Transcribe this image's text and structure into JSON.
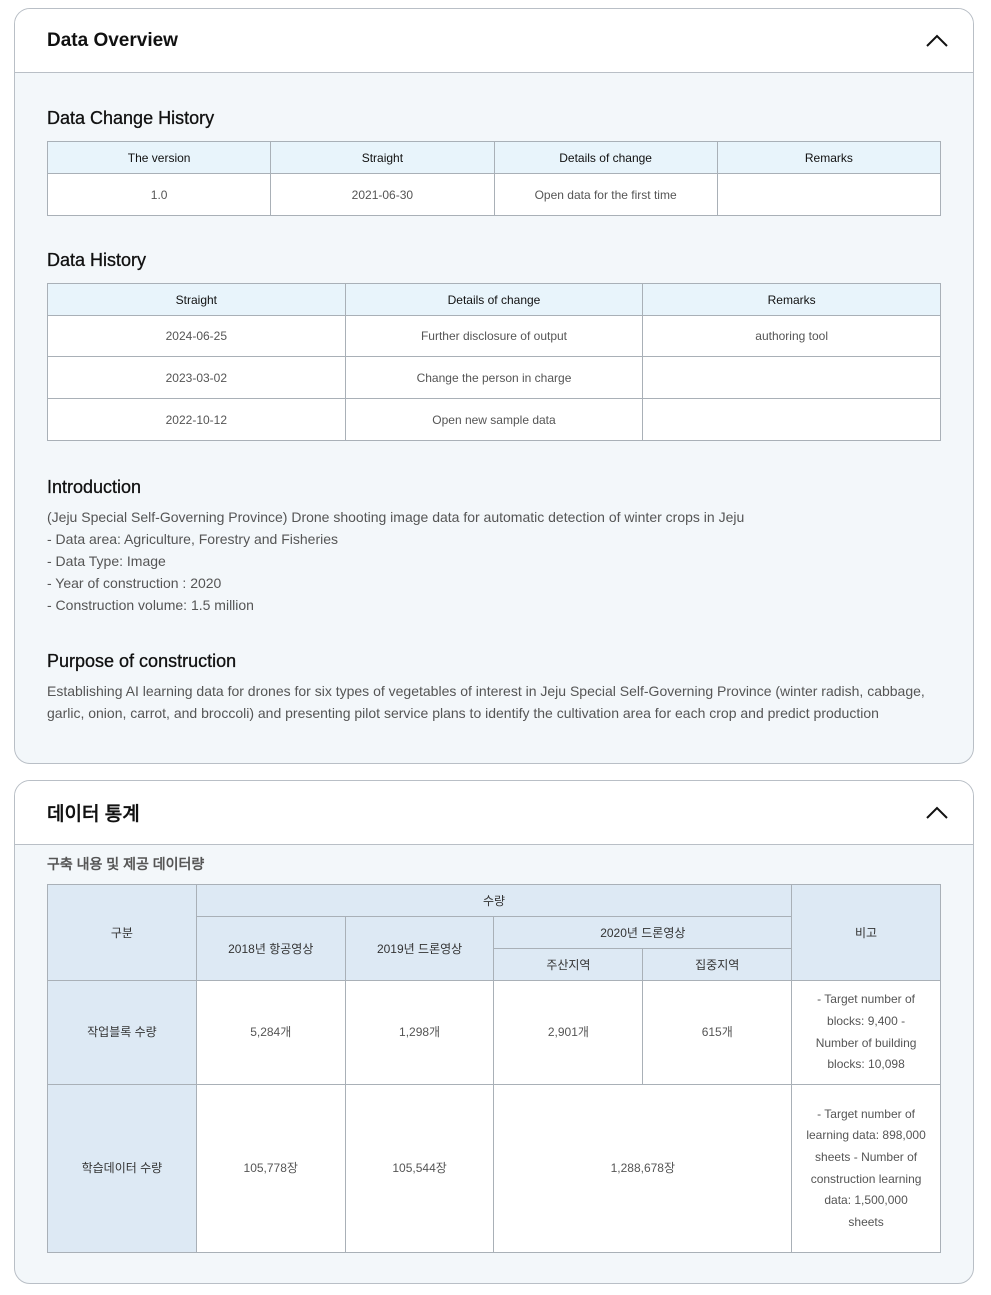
{
  "overview": {
    "title": "Data Overview",
    "change_history": {
      "title": "Data Change History",
      "headers": [
        "The version",
        "Straight",
        "Details of change",
        "Remarks"
      ],
      "rows": [
        [
          "1.0",
          "2021-06-30",
          "Open data for the first time",
          ""
        ]
      ]
    },
    "history": {
      "title": "Data History",
      "headers": [
        "Straight",
        "Details of change",
        "Remarks"
      ],
      "rows": [
        [
          "2024-06-25",
          "Further disclosure of output",
          "authoring tool"
        ],
        [
          "2023-03-02",
          "Change the person in charge",
          ""
        ],
        [
          "2022-10-12",
          "Open new sample data",
          ""
        ]
      ]
    },
    "intro": {
      "title": "Introduction",
      "lines": [
        "(Jeju Special Self-Governing Province) Drone shooting image data for automatic detection of winter crops in Jeju",
        "- Data area: Agriculture, Forestry and Fisheries",
        "- Data Type: Image",
        "- Year of construction : 2020",
        "- Construction volume: 1.5 million"
      ]
    },
    "purpose": {
      "title": "Purpose of construction",
      "text": "Establishing AI learning data for drones for six types of vegetables of interest in Jeju Special Self-Governing Province (winter radish, cabbage, garlic, onion, carrot, and broccoli) and presenting pilot service plans to identify the cultivation area for each crop and predict production"
    }
  },
  "stats": {
    "title": "데이터 통계",
    "subtitle": "구축 내용 및 제공 데이터량",
    "h": {
      "category": "구분",
      "quantity": "수량",
      "remarks": "비고",
      "y2018": "2018년 항공영상",
      "y2019": "2019년 드론영상",
      "y2020": "2020년 드론영상",
      "main": "주산지역",
      "focus": "집중지역"
    },
    "r1": {
      "label": "작업블록 수량",
      "a": "5,284개",
      "b": "1,298개",
      "c": "2,901개",
      "d": "615개",
      "remark": "- Target number of blocks: 9,400 - Number of building blocks: 10,098"
    },
    "r2": {
      "label": "학습데이터 수량",
      "a": "105,778장",
      "b": "105,544장",
      "c": "1,288,678장",
      "remark": "- Target number of learning data: 898,000 sheets - Number of construction learning data: 1,500,000 sheets"
    }
  }
}
